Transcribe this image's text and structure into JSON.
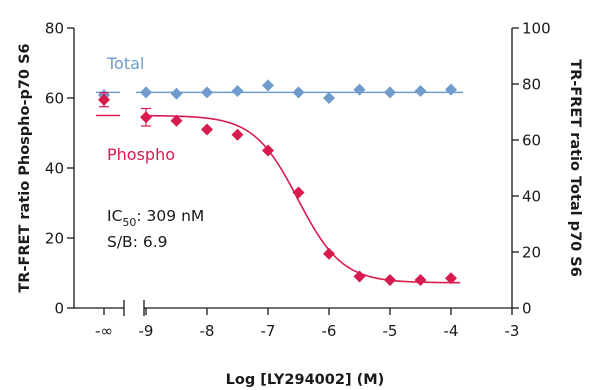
{
  "chart_data": {
    "type": "scatter",
    "xlabel": "Log [LY294002] (M)",
    "ylabel_left": "TR-FRET ratio Phospho-p70 S6",
    "ylabel_right": "TR-FRET ratio Total p70 S6",
    "x_ticks": [
      {
        "label": "-∞",
        "value": "-inf"
      },
      {
        "label": "-9",
        "value": -9
      },
      {
        "label": "-8",
        "value": -8
      },
      {
        "label": "-7",
        "value": -7
      },
      {
        "label": "-6",
        "value": -6
      },
      {
        "label": "-5",
        "value": -5
      },
      {
        "label": "-4",
        "value": -4
      },
      {
        "label": "-3",
        "value": -3
      }
    ],
    "xlim": [
      -9,
      -3
    ],
    "ylim_left": [
      0,
      80
    ],
    "ylim_right": [
      0,
      100
    ],
    "y_left_ticks": [
      "0",
      "20",
      "40",
      "60",
      "80"
    ],
    "y_right_ticks": [
      "0",
      "20",
      "40",
      "60",
      "80",
      "100"
    ],
    "grid": false,
    "series": [
      {
        "name": "Total",
        "color": "#6f9ccc",
        "axis": "right",
        "marker": "diamond",
        "x": [
          "-inf",
          -9,
          -8.5,
          -8,
          -7.5,
          -7,
          -6.5,
          -6,
          -5.5,
          -5,
          -4.5,
          -4
        ],
        "y": [
          76,
          77,
          76.5,
          77,
          77.5,
          79.5,
          77,
          75,
          78,
          77,
          77.5,
          78
        ],
        "fit_level": 77
      },
      {
        "name": "Phospho",
        "color": "#d81b4f",
        "axis": "left",
        "marker": "diamond",
        "x": [
          "-inf",
          -9,
          -8.5,
          -8,
          -7.5,
          -7,
          -6.5,
          -6,
          -5.5,
          -5,
          -4.5,
          -4
        ],
        "y": [
          59.5,
          54.5,
          53.5,
          51,
          49.5,
          45,
          33,
          15.5,
          9,
          8,
          8,
          8.5
        ],
        "errors": [
          2,
          2.5,
          0,
          0,
          0,
          0,
          0,
          0,
          0,
          0,
          0,
          0
        ],
        "fit": {
          "top": 55,
          "bottom": 7.2,
          "log_ic50": -6.51,
          "hill": 1.2
        }
      }
    ],
    "annotations": {
      "ic50_prefix": "IC",
      "ic50_sub": "50",
      "ic50_value": ": 309 nM",
      "sb": "S/B: 6.9"
    }
  }
}
